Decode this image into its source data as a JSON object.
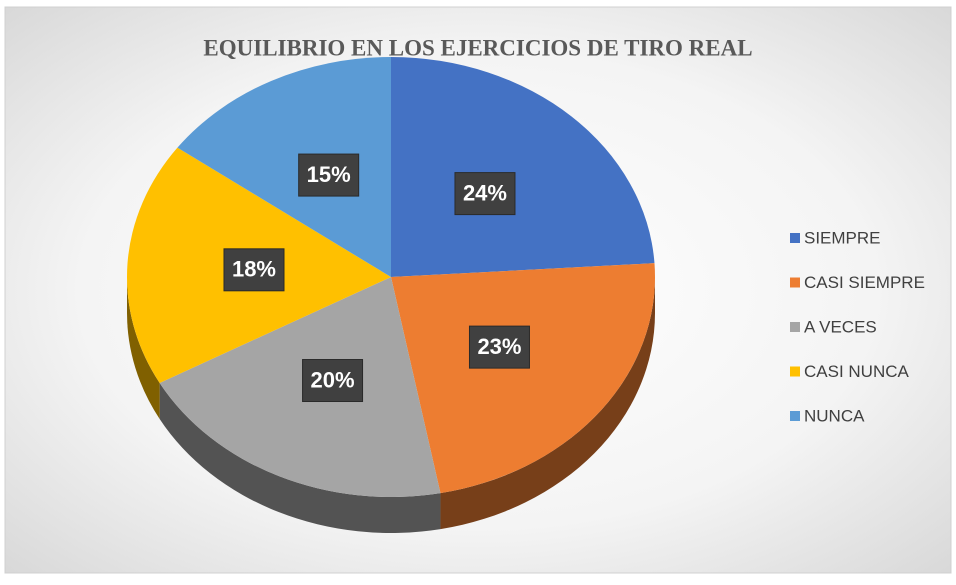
{
  "chart_data": {
    "type": "pie",
    "title": "EQUILIBRIO EN LOS EJERCICIOS DE TIRO REAL",
    "categories": [
      "SIEMPRE",
      "CASI SIEMPRE",
      "A VECES",
      "CASI NUNCA",
      "NUNCA"
    ],
    "values": [
      24,
      23,
      20,
      18,
      15
    ],
    "value_labels": [
      "24%",
      "23%",
      "20%",
      "18%",
      "15%"
    ],
    "colors": [
      "#4472c4",
      "#ed7d31",
      "#a5a5a5",
      "#ffc000",
      "#5b9bd5"
    ],
    "legend": "right"
  }
}
